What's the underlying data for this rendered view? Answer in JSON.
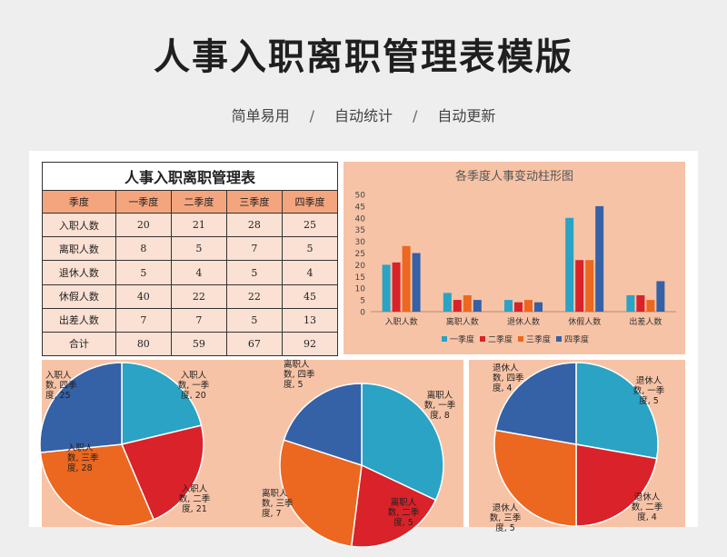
{
  "page": {
    "title": "人事入职离职管理表模版",
    "subtitle_items": [
      "简单易用",
      "自动统计",
      "自动更新"
    ],
    "separator": "/"
  },
  "table": {
    "title": "人事入职离职管理表",
    "headers": [
      "季度",
      "一季度",
      "二季度",
      "三季度",
      "四季度"
    ],
    "rows": [
      [
        "入职人数",
        "20",
        "21",
        "28",
        "25"
      ],
      [
        "离职人数",
        "8",
        "5",
        "7",
        "5"
      ],
      [
        "退休人数",
        "5",
        "4",
        "5",
        "4"
      ],
      [
        "休假人数",
        "40",
        "22",
        "22",
        "45"
      ],
      [
        "出差人数",
        "7",
        "7",
        "5",
        "13"
      ],
      [
        "合计",
        "80",
        "59",
        "67",
        "92"
      ]
    ]
  },
  "colors": {
    "q1": "#2aa3c4",
    "q2": "#d92229",
    "q3": "#ec6720",
    "q4": "#3561a6",
    "panel_bg": "#f7c3a6"
  },
  "chart_data": [
    {
      "type": "bar",
      "title": "各季度人事变动柱形图",
      "categories": [
        "入职人数",
        "离职人数",
        "退休人数",
        "休假人数",
        "出差人数"
      ],
      "series": [
        {
          "name": "一季度",
          "values": [
            20,
            8,
            5,
            40,
            7
          ]
        },
        {
          "name": "二季度",
          "values": [
            21,
            5,
            4,
            22,
            7
          ]
        },
        {
          "name": "三季度",
          "values": [
            28,
            7,
            5,
            22,
            5
          ]
        },
        {
          "name": "四季度",
          "values": [
            25,
            5,
            4,
            45,
            13
          ]
        }
      ],
      "ylim": [
        0,
        50
      ],
      "yticks": [
        0,
        5,
        10,
        15,
        20,
        25,
        30,
        35,
        40,
        45,
        50
      ],
      "legend": "bottom"
    },
    {
      "type": "pie",
      "values": [
        20,
        21,
        28,
        25
      ],
      "labels": [
        [
          "入职人",
          "数, 一季",
          "度, 20"
        ],
        [
          "入职人",
          "数, 二季",
          "度, 21"
        ],
        [
          "入职人",
          "数, 三季",
          "度, 28"
        ],
        [
          "入职人",
          "数, 四季",
          "度, 25"
        ]
      ]
    },
    {
      "type": "pie",
      "values": [
        8,
        5,
        7,
        5
      ],
      "labels": [
        [
          "离职人",
          "数, 一季",
          "度, 8"
        ],
        [
          "离职人",
          "数, 二季",
          "度, 5"
        ],
        [
          "离职人",
          "数, 三季",
          "度, 7"
        ],
        [
          "离职人",
          "数, 四季",
          "度, 5"
        ]
      ]
    },
    {
      "type": "pie",
      "values": [
        5,
        4,
        5,
        4
      ],
      "labels": [
        [
          "退休人",
          "数, 一季",
          "度, 5"
        ],
        [
          "退休人",
          "数, 二季",
          "度, 4"
        ],
        [
          "退休人",
          "数, 三季",
          "度, 5"
        ],
        [
          "退休人",
          "数, 四季",
          "度, 4"
        ]
      ]
    }
  ]
}
